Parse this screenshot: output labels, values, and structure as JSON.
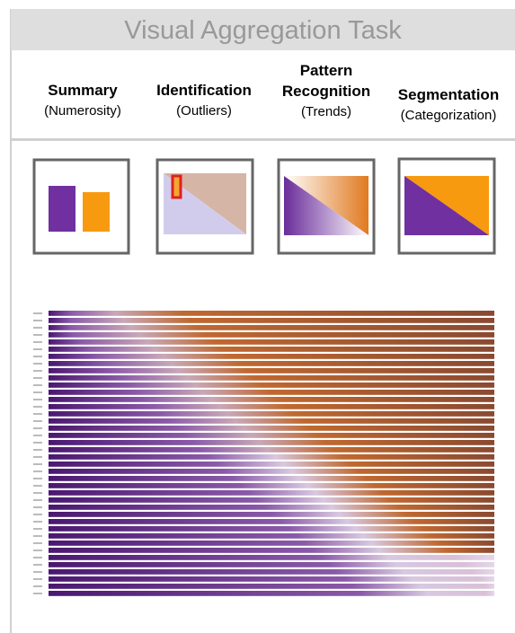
{
  "header": {
    "title": "Visual Aggregation Task"
  },
  "columns": [
    {
      "title": "Summary",
      "subtitle": "(Numerosity)"
    },
    {
      "title": "Identification",
      "subtitle": "(Outliers)"
    },
    {
      "title": "Pattern Recognition",
      "subtitle": "(Trends)"
    },
    {
      "title": "Segmentation",
      "subtitle": "(Categorization)"
    }
  ]
}
